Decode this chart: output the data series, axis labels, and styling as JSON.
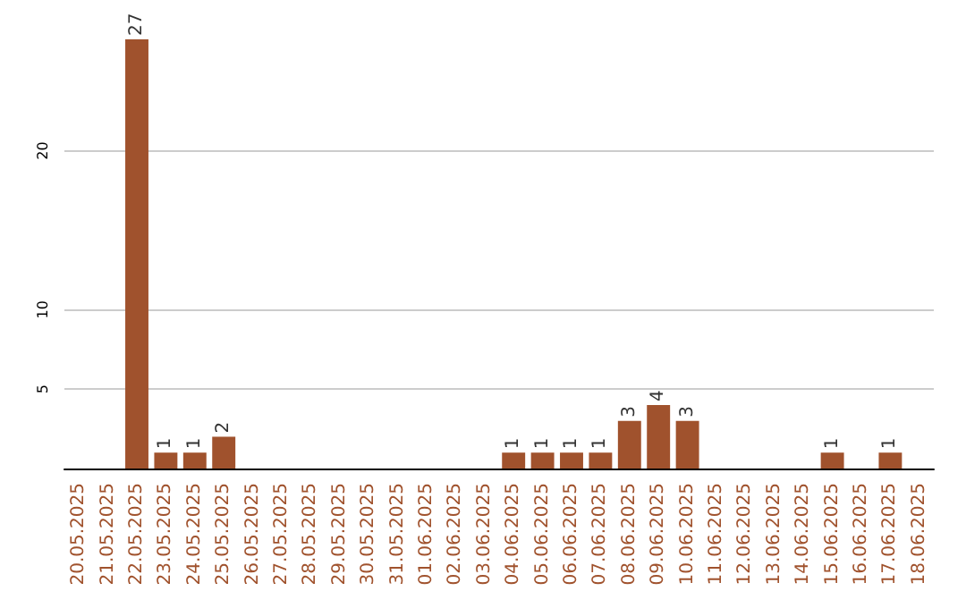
{
  "chart_data": {
    "type": "bar",
    "categories": [
      "20.05.2025",
      "21.05.2025",
      "22.05.2025",
      "23.05.2025",
      "24.05.2025",
      "25.05.2025",
      "26.05.2025",
      "27.05.2025",
      "28.05.2025",
      "29.05.2025",
      "30.05.2025",
      "31.05.2025",
      "01.06.2025",
      "02.06.2025",
      "03.06.2025",
      "04.06.2025",
      "05.06.2025",
      "06.06.2025",
      "07.06.2025",
      "08.06.2025",
      "09.06.2025",
      "10.06.2025",
      "11.06.2025",
      "12.06.2025",
      "13.06.2025",
      "14.06.2025",
      "15.06.2025",
      "16.06.2025",
      "17.06.2025",
      "18.06.2025"
    ],
    "values": [
      0,
      0,
      27,
      1,
      1,
      2,
      0,
      0,
      0,
      0,
      0,
      0,
      0,
      0,
      0,
      1,
      1,
      1,
      1,
      3,
      4,
      3,
      0,
      0,
      0,
      0,
      1,
      0,
      1,
      0
    ],
    "value_labels": [
      null,
      null,
      "27",
      "1",
      "1",
      "2",
      null,
      null,
      null,
      null,
      null,
      null,
      null,
      null,
      null,
      "1",
      "1",
      "1",
      "1",
      "3",
      "4",
      "3",
      null,
      null,
      null,
      null,
      "1",
      null,
      "1",
      null
    ],
    "color": "#a0522d",
    "ylim": [
      0,
      27
    ],
    "yticks": [
      5,
      10,
      20
    ],
    "grid": "y"
  }
}
